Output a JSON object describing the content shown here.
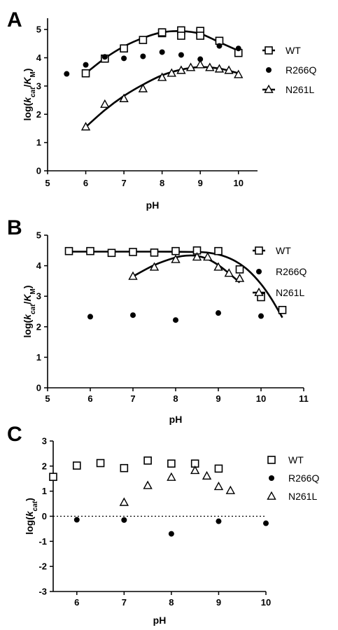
{
  "figure": {
    "panels": [
      "A",
      "B",
      "C"
    ]
  },
  "chart_data": [
    {
      "panel": "A",
      "type": "scatter",
      "xlabel": "pH",
      "ylabel_parts": [
        "log(",
        "k",
        "cat",
        "/",
        "K",
        "M",
        ")"
      ],
      "xlim": [
        5,
        10.5
      ],
      "ylim": [
        0,
        5.4
      ],
      "xticks": [
        5,
        6,
        7,
        8,
        9,
        10
      ],
      "yticks": [
        0,
        1,
        2,
        3,
        4,
        5
      ],
      "grid": false,
      "legend_position": "right",
      "series": [
        {
          "name": "WT",
          "marker": "square",
          "line": true,
          "x": [
            6,
            6.5,
            7,
            7.5,
            8,
            8,
            8.5,
            8.5,
            9,
            9,
            9.5,
            10
          ],
          "y": [
            3.45,
            3.97,
            4.33,
            4.63,
            4.87,
            4.9,
            4.97,
            4.78,
            4.95,
            4.78,
            4.6,
            4.17
          ],
          "fit": {
            "x": [
              6,
              6.5,
              7,
              7.5,
              8,
              8.5,
              9,
              9.5,
              10
            ],
            "y": [
              3.45,
              3.98,
              4.4,
              4.7,
              4.9,
              4.94,
              4.85,
              4.55,
              4.25
            ]
          }
        },
        {
          "name": "R266Q",
          "marker": "circle",
          "line": false,
          "x": [
            5.5,
            6,
            6.5,
            7,
            7.5,
            8,
            8.5,
            9,
            9.5,
            10
          ],
          "y": [
            3.43,
            3.75,
            4.03,
            3.98,
            4.05,
            4.2,
            4.1,
            3.95,
            4.42,
            4.33
          ]
        },
        {
          "name": "N261L",
          "marker": "triangle",
          "line": true,
          "x": [
            6,
            6.5,
            7,
            7.5,
            8,
            8.25,
            8.5,
            8.75,
            9,
            9.25,
            9.5,
            9.75,
            10
          ],
          "y": [
            1.55,
            2.35,
            2.55,
            2.9,
            3.3,
            3.45,
            3.55,
            3.65,
            3.75,
            3.65,
            3.6,
            3.55,
            3.4
          ],
          "fit": {
            "x": [
              6,
              6.5,
              7,
              7.5,
              8,
              8.5,
              9,
              9.5,
              10
            ],
            "y": [
              1.55,
              2.15,
              2.65,
              3.05,
              3.38,
              3.58,
              3.67,
              3.62,
              3.45
            ]
          }
        }
      ]
    },
    {
      "panel": "B",
      "type": "scatter",
      "xlabel": "pH",
      "ylabel_parts": [
        "log(",
        "k",
        "cat",
        "/",
        "K",
        "M",
        ")"
      ],
      "xlim": [
        5,
        11
      ],
      "ylim": [
        0,
        5
      ],
      "xticks": [
        5,
        6,
        7,
        8,
        9,
        10,
        11
      ],
      "yticks": [
        0,
        1,
        2,
        3,
        4,
        5
      ],
      "grid": false,
      "legend_position": "right",
      "series": [
        {
          "name": "WT",
          "marker": "square",
          "line": true,
          "x": [
            5.5,
            6,
            6.5,
            7,
            7.5,
            8,
            8.5,
            9,
            9.5,
            10,
            10.5
          ],
          "y": [
            4.48,
            4.48,
            4.42,
            4.45,
            4.43,
            4.48,
            4.5,
            4.48,
            3.88,
            2.97,
            2.55
          ],
          "fit": {
            "x": [
              5.5,
              6.5,
              7.5,
              8.5,
              8.8,
              9.1,
              9.4,
              9.7,
              10,
              10.25,
              10.5
            ],
            "y": [
              4.46,
              4.46,
              4.46,
              4.45,
              4.42,
              4.33,
              4.15,
              3.85,
              3.4,
              2.9,
              2.3
            ]
          }
        },
        {
          "name": "R266Q",
          "marker": "circle",
          "line": false,
          "x": [
            6,
            7,
            8,
            9,
            10
          ],
          "y": [
            2.33,
            2.38,
            2.22,
            2.45,
            2.35
          ]
        },
        {
          "name": "N261L",
          "marker": "triangle",
          "line": true,
          "x": [
            7,
            7.5,
            8,
            8.5,
            8.75,
            9,
            9.25,
            9.5
          ],
          "y": [
            3.65,
            3.95,
            4.2,
            4.28,
            4.28,
            3.95,
            3.75,
            3.58
          ],
          "fit": {
            "x": [
              7,
              7.5,
              8,
              8.25,
              8.5,
              8.75,
              9,
              9.25,
              9.5
            ],
            "y": [
              3.65,
              4.02,
              4.27,
              4.33,
              4.32,
              4.22,
              4.02,
              3.75,
              3.45
            ]
          }
        }
      ]
    },
    {
      "panel": "C",
      "type": "scatter",
      "xlabel": "pH",
      "ylabel_parts": [
        "log(",
        "k",
        "cat",
        ")"
      ],
      "xlim": [
        5.5,
        10
      ],
      "ylim": [
        -3,
        3
      ],
      "xticks": [
        6,
        7,
        8,
        9,
        10
      ],
      "yticks": [
        -3,
        -2,
        -1,
        0,
        1,
        2,
        3
      ],
      "zero_line": "dotted",
      "grid": false,
      "legend_position": "right",
      "series": [
        {
          "name": "WT",
          "marker": "square",
          "line": false,
          "x": [
            5.5,
            6,
            6.5,
            7,
            7.5,
            8,
            8.5,
            9
          ],
          "y": [
            1.57,
            2.02,
            2.12,
            1.92,
            2.22,
            2.1,
            2.1,
            1.9
          ]
        },
        {
          "name": "R266Q",
          "marker": "circle",
          "line": false,
          "x": [
            6,
            7,
            8,
            9,
            10
          ],
          "y": [
            -0.14,
            -0.15,
            -0.7,
            -0.2,
            -0.28
          ]
        },
        {
          "name": "N261L",
          "marker": "triangle",
          "line": false,
          "x": [
            7,
            7.5,
            8,
            8.5,
            8.75,
            9,
            9.25
          ],
          "y": [
            0.55,
            1.22,
            1.55,
            1.82,
            1.6,
            1.18,
            1.02
          ]
        }
      ]
    }
  ]
}
